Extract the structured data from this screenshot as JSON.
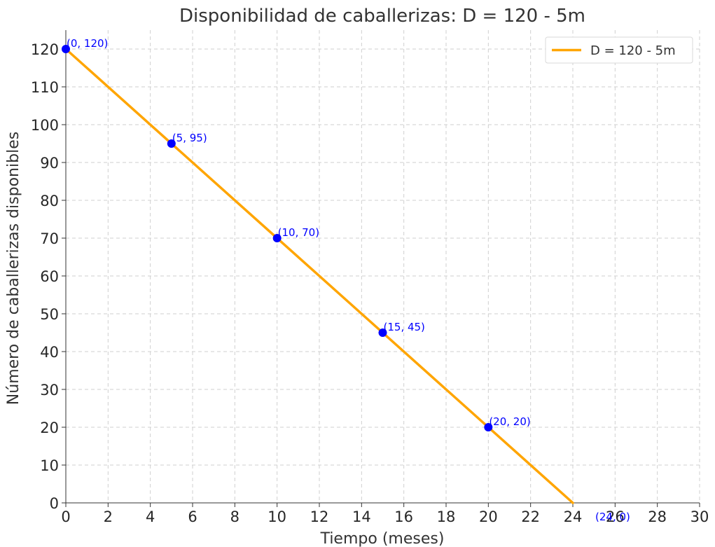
{
  "chart_data": {
    "type": "line",
    "title": "Disponibilidad de caballerizas: D = 120 - 5m",
    "xlabel": "Tiempo (meses)",
    "ylabel": "Número de caballerizas disponibles",
    "xlim": [
      0,
      30
    ],
    "ylim": [
      0,
      125
    ],
    "x_ticks": [
      0,
      2,
      4,
      6,
      8,
      10,
      12,
      14,
      16,
      18,
      20,
      22,
      24,
      26,
      28,
      30
    ],
    "y_ticks": [
      0,
      10,
      20,
      30,
      40,
      50,
      60,
      70,
      80,
      90,
      100,
      110,
      120
    ],
    "grid": true,
    "legend_position": "top-right",
    "series": [
      {
        "name": "D = 120 - 5m",
        "color": "#FFA500",
        "x": [
          0,
          24
        ],
        "y": [
          120,
          0
        ]
      }
    ],
    "points": {
      "color": "#0000FF",
      "x": [
        0,
        5,
        10,
        15,
        20
      ],
      "y": [
        120,
        95,
        70,
        45,
        20
      ],
      "labels": [
        "(0, 120)",
        "(5, 95)",
        "(10, 70)",
        "(15, 45)",
        "(20, 20)"
      ]
    },
    "annotations": [
      {
        "text": "(24, 0)",
        "x": 24,
        "y": 0
      }
    ]
  }
}
